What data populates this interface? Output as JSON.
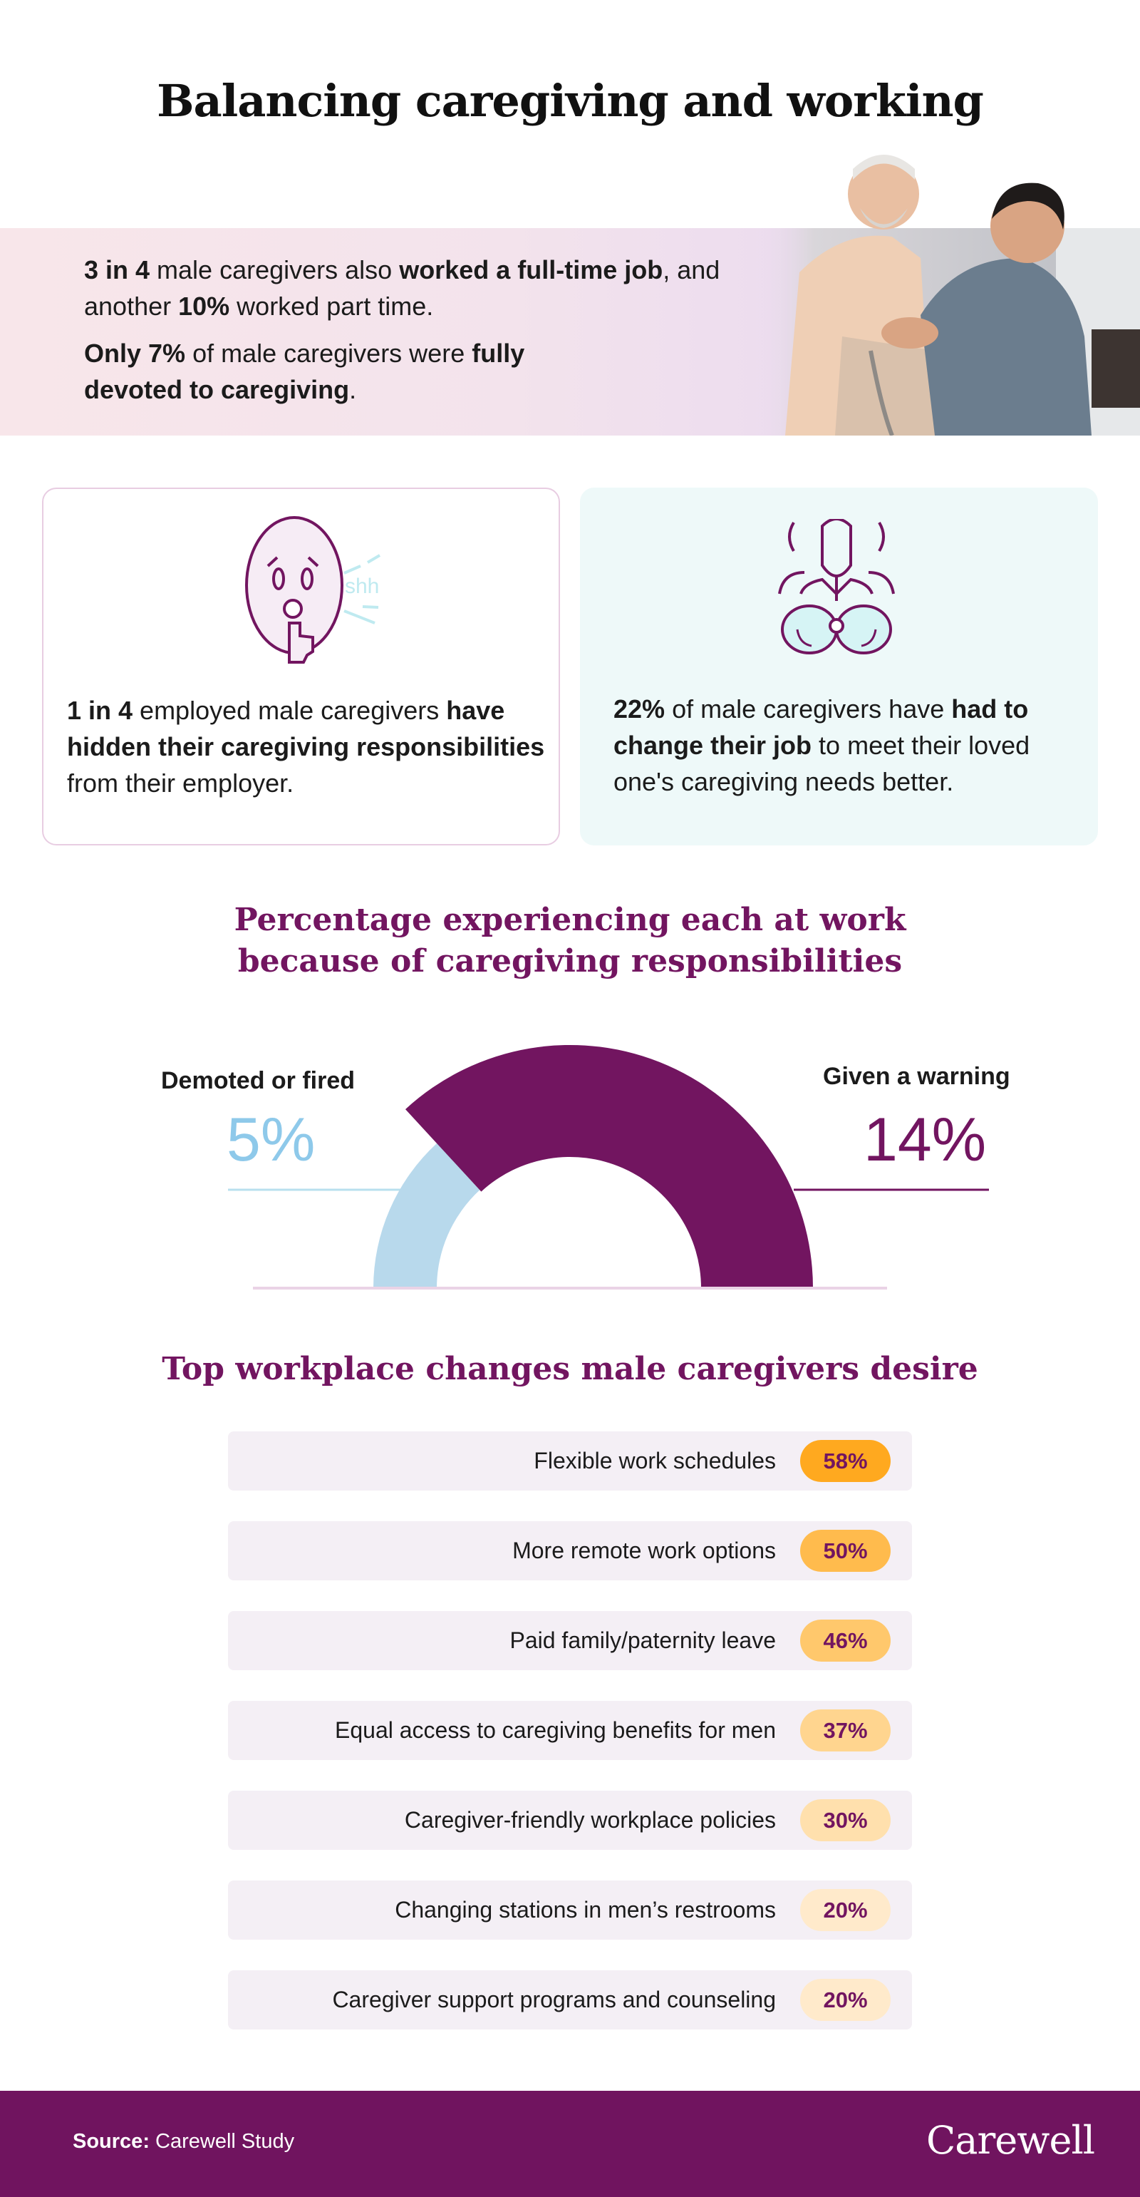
{
  "title": "Balancing caregiving and working",
  "banner": {
    "p1": [
      "3 in 4",
      " male caregivers also ",
      "worked a full-time job",
      ", and another ",
      "10%",
      " worked part time."
    ],
    "p2": [
      "Only 7%",
      " of male caregivers were ",
      "fully devoted to caregiving",
      "."
    ]
  },
  "cards": [
    {
      "icon": "shush-face-icon",
      "icon_text": "shh",
      "text": [
        "1 in 4",
        " employed male caregivers ",
        "have hidden their caregiving responsibilities",
        " from their employer."
      ]
    },
    {
      "icon": "spy-binoculars-icon",
      "text": [
        "22%",
        " of male caregivers have ",
        "had to change their job",
        " to meet their loved one's caregiving needs better."
      ]
    }
  ],
  "colors": {
    "brand_purple": "#721560",
    "light_blue": "#b8d9ec",
    "blue_text": "#8ec9ea",
    "footer": "#70145f"
  },
  "chart_data": [
    {
      "type": "pie",
      "variant": "semicircle-gauge",
      "title": "Percentage experiencing each at work because of caregiving responsibilities",
      "categories": [
        "Demoted or fired",
        "Given a warning"
      ],
      "values": [
        5,
        14
      ],
      "labels": [
        "5%",
        "14%"
      ],
      "colors": [
        "#b8d9ec",
        "#721560"
      ]
    },
    {
      "type": "table",
      "title": "Top workplace changes male caregivers desire",
      "categories": [
        "Flexible work schedules",
        "More remote work options",
        "Paid family/paternity leave",
        "Equal access to caregiving benefits for men",
        "Caregiver-friendly workplace policies",
        "Changing stations in men’s restrooms",
        "Caregiver support programs and counseling"
      ],
      "values": [
        58,
        50,
        46,
        37,
        30,
        20,
        20
      ],
      "labels": [
        "58%",
        "50%",
        "46%",
        "37%",
        "30%",
        "20%",
        "20%"
      ],
      "pill_colors": [
        "#ffa91f",
        "#ffbb4d",
        "#ffc86c",
        "#ffd58f",
        "#ffe0ad",
        "#ffeacb",
        "#ffeacb"
      ]
    }
  ],
  "footer": {
    "source_label": "Source:",
    "source_value": " Carewell Study",
    "logo": "Carewell"
  }
}
